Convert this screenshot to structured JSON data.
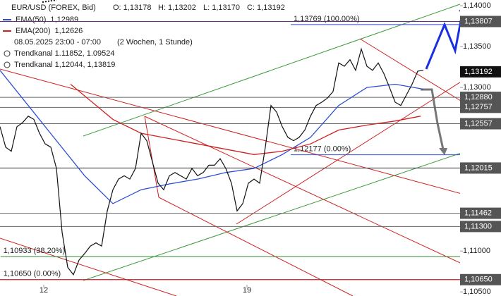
{
  "chart_data": {
    "type": "line",
    "header": {
      "symbol": "EUR/USD (FOREX, Bid)",
      "ohlc": [
        "O: 1,13178",
        "H: 1,13202",
        "L: 1,13170",
        "C: 1,13192"
      ],
      "period": "08.05.2025 23:00 - 07:00",
      "interval": "(2 Wochen, 1 Stunde)",
      "trendchannels": [
        "Trendkanal 1.11852, 1.09524",
        "Trendkanal 1,12044, 1,13819"
      ]
    },
    "x": [
      0,
      1,
      2,
      3,
      4,
      5,
      6,
      7,
      8,
      9,
      10,
      11,
      12,
      13,
      14,
      15,
      16,
      17,
      18,
      19,
      20,
      21,
      22,
      23,
      24,
      25,
      26,
      27,
      28,
      29,
      30,
      31,
      32,
      33,
      34,
      35,
      36,
      37,
      38,
      39,
      40,
      41,
      42,
      43,
      44,
      45,
      46,
      47,
      48,
      49,
      50,
      51,
      52,
      53,
      54,
      55,
      56,
      57,
      58,
      59,
      60,
      61,
      62,
      63,
      64,
      65,
      66,
      67,
      68,
      69,
      70,
      71,
      72,
      73,
      74,
      75
    ],
    "values": [
      1.1252,
      1.1227,
      1.1222,
      1.1252,
      1.1257,
      1.1265,
      1.1261,
      1.1244,
      1.1231,
      1.1227,
      1.1201,
      1.1123,
      1.108,
      1.1071,
      1.1089,
      1.1097,
      1.1106,
      1.111,
      1.1106,
      1.1149,
      1.1175,
      1.1188,
      1.1192,
      1.1188,
      1.1201,
      1.1244,
      1.1235,
      1.1209,
      1.1183,
      1.1175,
      1.1192,
      1.1196,
      1.1192,
      1.1188,
      1.1201,
      1.1192,
      1.1196,
      1.1205,
      1.1205,
      1.1213,
      1.1201,
      1.1183,
      1.1149,
      1.1158,
      1.1183,
      1.1188,
      1.1183,
      1.1227,
      1.1278,
      1.127,
      1.1252,
      1.1239,
      1.1235,
      1.1239,
      1.1248,
      1.1265,
      1.1278,
      1.1282,
      1.1287,
      1.1295,
      1.133,
      1.1326,
      1.1334,
      1.1321,
      1.1347,
      1.1326,
      1.1321,
      1.133,
      1.1317,
      1.13,
      1.1282,
      1.1278,
      1.1291,
      1.1304,
      1.132,
      1.1321
    ],
    "color": "#111111",
    "series": [
      {
        "name": "EMA(50)",
        "last_label": "1,12989",
        "color": "#2a4fd6",
        "x": [
          0,
          5,
          10,
          15,
          20,
          25,
          30,
          35,
          40,
          45,
          50,
          55,
          60,
          65,
          70,
          75
        ],
        "values": [
          1.1321,
          1.1278,
          1.1235,
          1.1192,
          1.1158,
          1.1175,
          1.1182,
          1.1188,
          1.1196,
          1.1201,
          1.1218,
          1.1239,
          1.1278,
          1.13,
          1.1304,
          1.1298
        ]
      },
      {
        "name": "EMA(200)",
        "last_label": "1,12626",
        "color": "#d02020",
        "x": [
          12.5,
          20,
          25,
          35,
          45,
          50,
          55,
          60,
          65,
          70,
          74.5
        ],
        "values": [
          1.1304,
          1.1261,
          1.1244,
          1.1231,
          1.1218,
          1.1222,
          1.1231,
          1.1248,
          1.1254,
          1.1259,
          1.1265
        ]
      }
    ],
    "xlim": [
      0,
      81.5
    ],
    "xticks": [
      {
        "value": 7.75,
        "label": "12"
      },
      {
        "value": 43.75,
        "label": "19"
      }
    ],
    "ylim": [
      1.1045,
      1.1407
    ],
    "yticks": [
      {
        "value": 1.14,
        "label": "1,14000"
      },
      {
        "value": 1.135,
        "label": "1,13500"
      },
      {
        "value": 1.13,
        "label": "1,13000"
      },
      {
        "value": 1.11,
        "label": "1,11000"
      },
      {
        "value": 1.105,
        "label": "1,10500"
      }
    ],
    "levels": [
      {
        "value": 1.13807,
        "label": "1,13807",
        "color": "#6a2c8a"
      },
      {
        "value": 1.1288,
        "label": "1,12880",
        "color": "#666666"
      },
      {
        "value": 1.12757,
        "label": "1,12757",
        "color": "#666666"
      },
      {
        "value": 1.12557,
        "label": "1,12557",
        "color": "#666666"
      },
      {
        "value": 1.12015,
        "label": "1,12015",
        "color": "#333333"
      },
      {
        "value": 1.11462,
        "label": "1,11462",
        "color": "#666666"
      },
      {
        "value": 1.113,
        "label": "1,11300",
        "color": "#666666"
      },
      {
        "value": 1.1065,
        "label": "1,10650",
        "color": "#333333"
      }
    ],
    "last_price": {
      "value": 1.13192,
      "label": "1,13192"
    },
    "fibs": [
      {
        "value": 1.13769,
        "label": "1,13769 (100.00%)",
        "color": "#2a4fd6",
        "x": 52
      },
      {
        "value": 1.12177,
        "label": "1,12177 (0.00%)",
        "color": "#2a4fd6",
        "x": 52
      },
      {
        "value": 1.10933,
        "label": "1,10933 (38.20%)",
        "color": "#2e8b2e",
        "x": 0.6
      },
      {
        "value": 1.1065,
        "label": "1,10650 (0.00%)",
        "color": "#d02020",
        "x": 0.6
      }
    ]
  }
}
